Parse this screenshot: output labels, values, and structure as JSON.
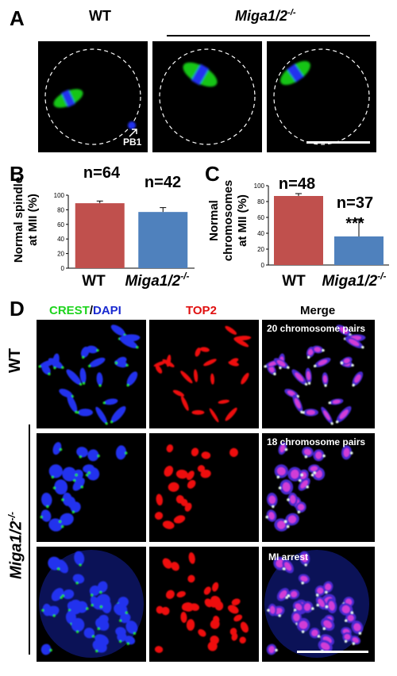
{
  "panel_A": {
    "letter": "A",
    "wt_label": "WT",
    "mutant_label": "Miga1/2",
    "mutant_sup": "-/-",
    "pb1_label": "PB1"
  },
  "panel_B": {
    "letter": "B",
    "ylabel_line1": "Normal spindle",
    "ylabel_line2": "at MII (%)",
    "xlabels": [
      "WT",
      "Miga1/2"
    ],
    "xlabel_sup": "-/-",
    "n_labels": [
      "n=64",
      "n=42"
    ]
  },
  "panel_C": {
    "letter": "C",
    "ylabel_line1": "Normal",
    "ylabel_line2": "chromosomes",
    "ylabel_line3": "at MII (%)",
    "xlabels": [
      "WT",
      "Miga1/2"
    ],
    "xlabel_sup": "-/-",
    "n_labels": [
      "n=48",
      "n=37"
    ],
    "significance": "***"
  },
  "panel_D": {
    "letter": "D",
    "col_crest": "CREST",
    "col_slash": "/",
    "col_dapi": "DAPI",
    "col_top2": "TOP2",
    "col_merge": "Merge",
    "row_wt": "WT",
    "row_mutant": "Miga1/2",
    "row_mutant_sup": "-/-",
    "merge_labels": [
      "20 chromosome pairs",
      "18 chromosome pairs",
      "MI arrest"
    ]
  },
  "colors": {
    "wt_bar": "#c0504d",
    "mutant_bar": "#4f81bd",
    "crest_green": "#22dd22",
    "dapi_blue": "#2233ee",
    "top2_red": "#ee1111"
  },
  "chart_data": [
    {
      "type": "bar",
      "categories": [
        "WT",
        "Miga1/2-/-"
      ],
      "values": [
        89,
        77
      ],
      "errors": [
        3,
        6
      ],
      "ylim": [
        0,
        100
      ],
      "yticks": [
        0,
        20,
        40,
        60,
        80,
        100
      ],
      "ylabel": "Normal spindle at MII (%)",
      "annotations": [
        "n=64",
        "n=42"
      ]
    },
    {
      "type": "bar",
      "categories": [
        "WT",
        "Miga1/2-/-"
      ],
      "values": [
        87,
        36
      ],
      "errors": [
        3,
        22
      ],
      "ylim": [
        0,
        100
      ],
      "yticks": [
        0,
        20,
        40,
        60,
        80,
        100
      ],
      "ylabel": "Normal chromosomes at MII (%)",
      "annotations": [
        "n=48",
        "n=37",
        "***"
      ]
    }
  ]
}
